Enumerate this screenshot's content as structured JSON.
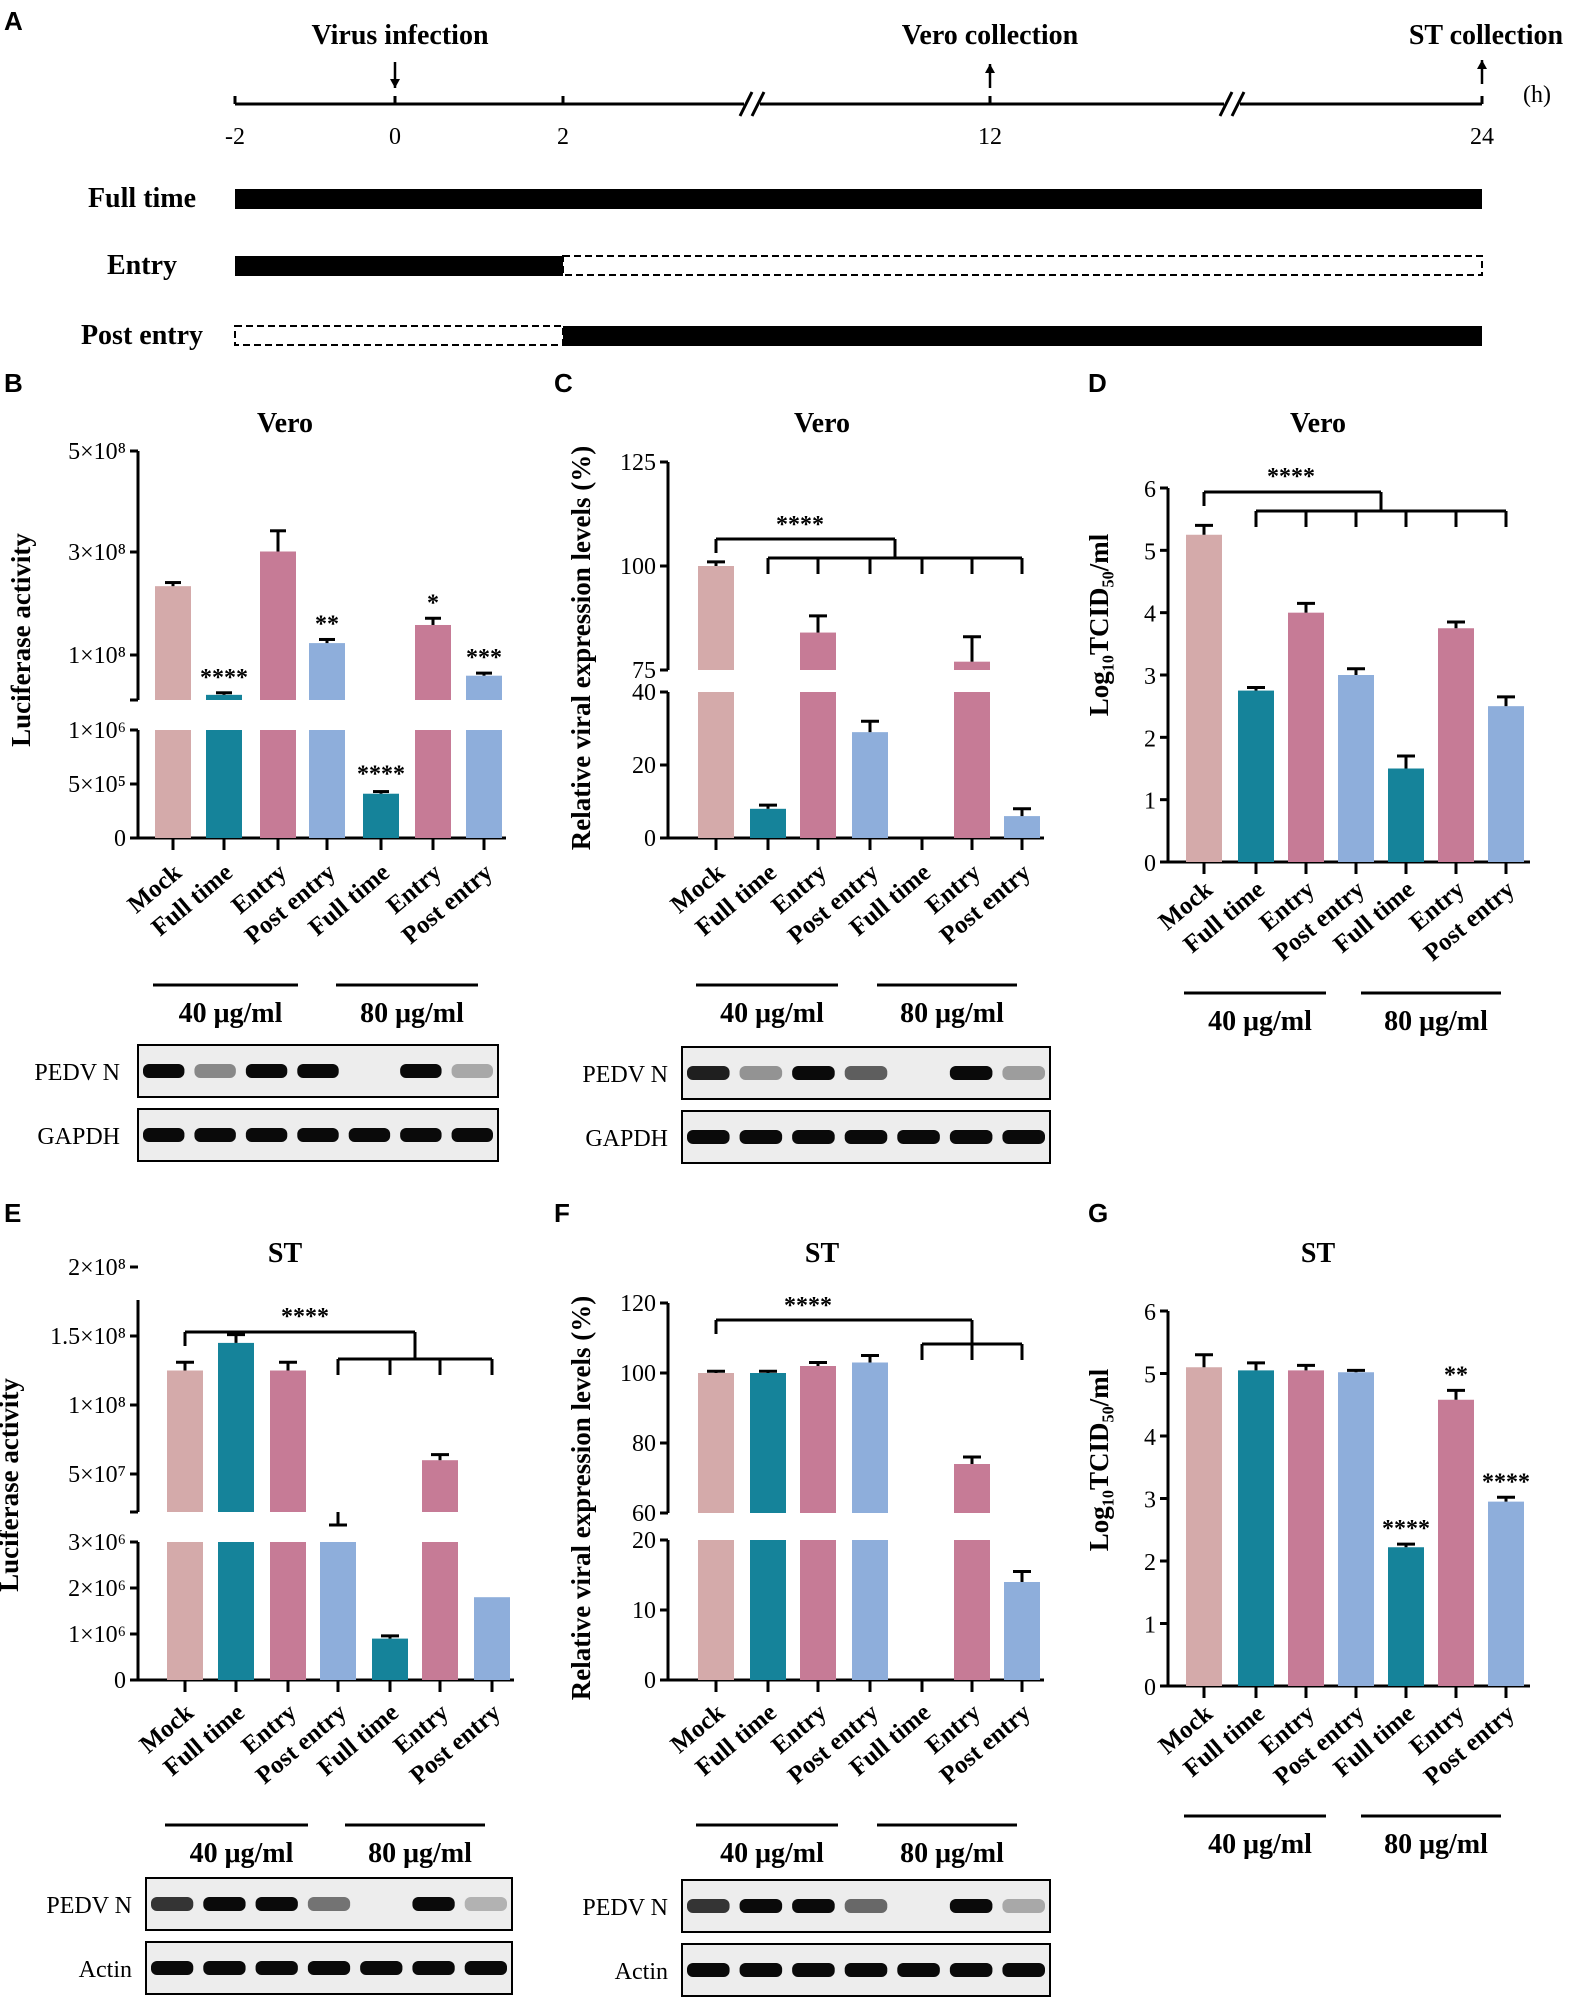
{
  "panels": {
    "A": "A",
    "B": "B",
    "C": "C",
    "D": "D",
    "E": "E",
    "F": "F",
    "G": "G"
  },
  "colors": {
    "mock": "#d4aaaa",
    "full_time": "#15839a",
    "entry": "#c67b96",
    "post_entry": "#8eaedb"
  },
  "timeline": {
    "labels": {
      "infection": "Virus infection",
      "vero": "Vero collection",
      "st": "ST collection",
      "unit": "(h)"
    },
    "ticks": [
      "-2",
      "0",
      "2",
      "12",
      "24"
    ],
    "rows": [
      {
        "label": "Full time",
        "solid": [
          [
            -2,
            24
          ]
        ],
        "dashed": []
      },
      {
        "label": "Entry",
        "solid": [
          [
            -2,
            2
          ]
        ],
        "dashed": [
          [
            2,
            24
          ]
        ]
      },
      {
        "label": "Post entry",
        "solid": [
          [
            2,
            24
          ]
        ],
        "dashed": [
          [
            -2,
            2
          ]
        ]
      }
    ]
  },
  "chart_data": [
    {
      "panel": "B",
      "type": "bar",
      "title": "Vero",
      "ylabel": "Luciferase activity",
      "broken_axis": true,
      "lower_ticks": [
        "0",
        "5×10⁵",
        "1×10⁶"
      ],
      "upper_ticks": [
        "1×10⁸",
        "3×10⁸",
        "5×10⁸"
      ],
      "categories": [
        "Mock",
        "Full time",
        "Entry",
        "Post entry",
        "Full time",
        "Entry",
        "Post entry"
      ],
      "values": [
        233000000,
        23000000,
        300000000,
        123000000,
        410000,
        158000000,
        60000000
      ],
      "errors": [
        7000000,
        4000000,
        40000000,
        7000000,
        20000,
        13000000,
        5000000
      ],
      "groups": [
        "40 μg/ml",
        "80 μg/ml"
      ],
      "significance": [
        "",
        "****",
        "",
        "**",
        "****",
        "*",
        "***"
      ],
      "blot": {
        "labels": [
          "PEDV N",
          "GAPDH"
        ],
        "bands": [
          1.0,
          0.4,
          1.0,
          1.0,
          0.0,
          1.0,
          0.25
        ]
      }
    },
    {
      "panel": "C",
      "type": "bar",
      "title": "Vero",
      "ylabel": "Relative viral expression levels (%)",
      "broken_axis": true,
      "lower_ticks": [
        "0",
        "20",
        "40"
      ],
      "upper_ticks": [
        "75",
        "100",
        "125"
      ],
      "categories": [
        "Mock",
        "Full time",
        "Entry",
        "Post entry",
        "Full time",
        "Entry",
        "Post entry"
      ],
      "values": [
        100,
        8,
        84,
        29,
        0,
        77,
        6
      ],
      "errors": [
        1,
        1,
        4,
        3,
        0,
        6,
        2
      ],
      "groups": [
        "40 μg/ml",
        "80 μg/ml"
      ],
      "bracket_label": "****",
      "blot": {
        "labels": [
          "PEDV N",
          "GAPDH"
        ],
        "bands": [
          0.9,
          0.35,
          1.0,
          0.6,
          0.0,
          1.0,
          0.3
        ]
      }
    },
    {
      "panel": "D",
      "type": "bar",
      "title": "Vero",
      "ylabel": "Log₁₀TCID₅₀/ml",
      "ylim": [
        0,
        6
      ],
      "yticks": [
        "0",
        "1",
        "2",
        "3",
        "4",
        "5",
        "6"
      ],
      "categories": [
        "Mock",
        "Full time",
        "Entry",
        "Post entry",
        "Full time",
        "Entry",
        "Post entry"
      ],
      "values": [
        5.25,
        2.75,
        4.0,
        3.0,
        1.5,
        3.75,
        2.5
      ],
      "errors": [
        0.15,
        0.05,
        0.15,
        0.1,
        0.2,
        0.1,
        0.15
      ],
      "groups": [
        "40 μg/ml",
        "80 μg/ml"
      ],
      "bracket_label": "****"
    },
    {
      "panel": "E",
      "type": "bar",
      "title": "ST",
      "ylabel": "Luciferase activity",
      "broken_axis": true,
      "lower_ticks": [
        "0",
        "1×10⁶",
        "2×10⁶",
        "3×10⁶"
      ],
      "upper_ticks": [
        "5×10⁷",
        "1×10⁸",
        "1.5×10⁸",
        "2×10⁸"
      ],
      "categories": [
        "Mock",
        "Full time",
        "Entry",
        "Post entry",
        "Full time",
        "Entry",
        "Post entry"
      ],
      "values": [
        125000000,
        145000000,
        125000000,
        12000000,
        900000,
        60000000,
        1800000
      ],
      "errors": [
        6000000,
        6000000,
        6000000,
        1000000,
        60000,
        4000000,
        0
      ],
      "groups": [
        "40 μg/ml",
        "80 μg/ml"
      ],
      "bracket_label": "****",
      "blot": {
        "labels": [
          "PEDV N",
          "Actin"
        ],
        "bands": [
          0.8,
          1.0,
          1.0,
          0.5,
          0.0,
          1.0,
          0.2
        ]
      }
    },
    {
      "panel": "F",
      "type": "bar",
      "title": "ST",
      "ylabel": "Relative viral expression levels (%)",
      "broken_axis": true,
      "lower_ticks": [
        "0",
        "10",
        "20"
      ],
      "upper_ticks": [
        "60",
        "80",
        "100",
        "120"
      ],
      "categories": [
        "Mock",
        "Full time",
        "Entry",
        "Post entry",
        "Full time",
        "Entry",
        "Post entry"
      ],
      "values": [
        100,
        100,
        102,
        103,
        0,
        74,
        14
      ],
      "errors": [
        0.5,
        0.5,
        1,
        2,
        0,
        2,
        1.5
      ],
      "groups": [
        "40 μg/ml",
        "80 μg/ml"
      ],
      "bracket_label": "****",
      "blot": {
        "labels": [
          "PEDV N",
          "Actin"
        ],
        "bands": [
          0.8,
          1.0,
          1.0,
          0.55,
          0.0,
          1.0,
          0.25
        ]
      }
    },
    {
      "panel": "G",
      "type": "bar",
      "title": "ST",
      "ylabel": "Log₁₀TCID₅₀/ml",
      "ylim": [
        0,
        6
      ],
      "yticks": [
        "0",
        "1",
        "2",
        "3",
        "4",
        "5",
        "6"
      ],
      "categories": [
        "Mock",
        "Full time",
        "Entry",
        "Post entry",
        "Full time",
        "Entry",
        "Post entry"
      ],
      "values": [
        5.1,
        5.05,
        5.05,
        5.02,
        2.22,
        4.58,
        2.95
      ],
      "errors": [
        0.2,
        0.12,
        0.08,
        0.03,
        0.05,
        0.15,
        0.07
      ],
      "groups": [
        "40 μg/ml",
        "80 μg/ml"
      ],
      "significance": [
        "",
        "",
        "",
        "",
        "****",
        "**",
        "****"
      ]
    }
  ]
}
